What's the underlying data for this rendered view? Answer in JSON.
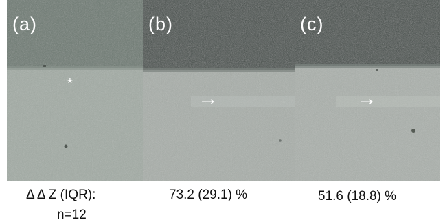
{
  "panels": [
    {
      "id": "a",
      "label": "(a)",
      "marker": "*"
    },
    {
      "id": "b",
      "label": "(b)",
      "marker": "→"
    },
    {
      "id": "c",
      "label": "(c)",
      "marker": "→"
    }
  ],
  "captions": {
    "a_line1": "Δ Δ Z (IQR):",
    "a_line2": "n=12",
    "b": "73.2 (29.1) %",
    "c": "51.6 (18.8) %"
  },
  "colors": {
    "upper_a": "#6d7a72",
    "lower_a": "#a2aba4",
    "upper_b": "#434c48",
    "lower_b": "#a8aea9",
    "upper_c": "#434c48",
    "lower_c": "#aab0ab"
  }
}
